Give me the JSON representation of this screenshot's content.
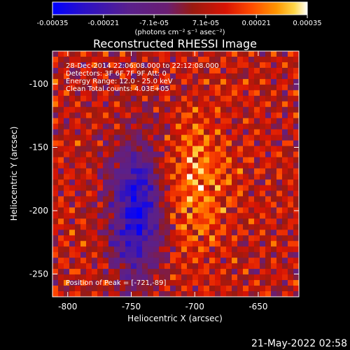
{
  "chart_data": {
    "type": "heatmap",
    "title": "Reconstructed RHESSI Image",
    "xlabel": "Heliocentric X (arcsec)",
    "ylabel": "Heliocentric Y (arcsec)",
    "xlim": [
      -812,
      -618
    ],
    "ylim": [
      -268,
      -74
    ],
    "x_ticks": [
      -800,
      -750,
      -700,
      -650
    ],
    "y_ticks": [
      -100,
      -150,
      -200,
      -250
    ],
    "colorbar": {
      "range": [
        -0.00035,
        0.00035
      ],
      "ticks": [
        "-0.00035",
        "-0.00021",
        "-7.1e-05",
        "7.1e-05",
        "0.00021",
        "0.00035"
      ],
      "units": "(photons cm⁻² s⁻¹ asec⁻²)",
      "colors": [
        "#0000ff",
        "#2a10c8",
        "#5a208c",
        "#6a1e72",
        "#9a1a10",
        "#d81404",
        "#ff4a00",
        "#ff9600",
        "#ffd84a",
        "#ffffff"
      ]
    },
    "annotations": {
      "time": "28-Dec-2014 22:06:08.000 to 22:12:08.000",
      "detectors": "Detectors: 3F 6F 7F 9F   Att: 0",
      "energy": "Energy Range: 12.0 - 25.0 keV",
      "method": "Clean     Total counts: 4.03E+05",
      "peak": "Position of Peak = [-721,-89]"
    },
    "features": {
      "peak_position": [
        -721,
        -89
      ],
      "positive_ridge": "bright region centred near x≈-700, y≈-180",
      "negative_trough": "blue region centred near x≈-745, y≈-200"
    }
  },
  "footer": {
    "timestamp": "21-May-2022 02:58"
  }
}
